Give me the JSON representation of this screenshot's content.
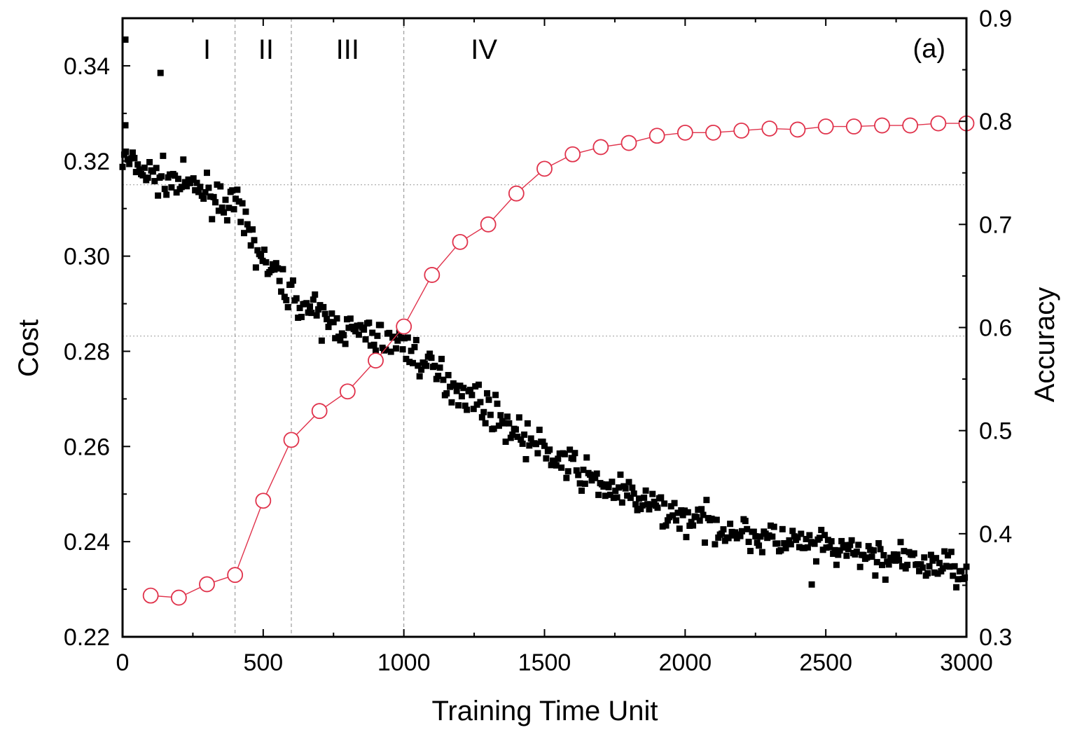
{
  "chart_data": {
    "type": "scatter",
    "panel_label": "(a)",
    "xlabel": "Training Time Unit",
    "ylabel_left": "Cost",
    "ylabel_right": "Accuracy",
    "xlim": [
      0,
      3000
    ],
    "ylim_left": [
      0.22,
      0.35
    ],
    "ylim_right": [
      0.3,
      0.9
    ],
    "x_ticks": [
      0,
      500,
      1000,
      1500,
      2000,
      2500,
      3000
    ],
    "x_tick_labels": [
      "0",
      "500",
      "1000",
      "1500",
      "2000",
      "2500",
      "3000"
    ],
    "y_left_ticks": [
      0.22,
      0.24,
      0.26,
      0.28,
      0.3,
      0.32,
      0.34
    ],
    "y_left_tick_labels": [
      "0.22",
      "0.24",
      "0.26",
      "0.28",
      "0.30",
      "0.32",
      "0.34"
    ],
    "y_right_ticks": [
      0.3,
      0.4,
      0.5,
      0.6,
      0.7,
      0.8,
      0.9
    ],
    "y_right_tick_labels": [
      "0.3",
      "0.4",
      "0.5",
      "0.6",
      "0.7",
      "0.8",
      "0.9"
    ],
    "phase_boundaries": [
      400,
      600,
      1000
    ],
    "phases": [
      {
        "label": "I",
        "x": 300
      },
      {
        "label": "II",
        "x": 510
      },
      {
        "label": "III",
        "x": 800
      },
      {
        "label": "IV",
        "x": 1285
      }
    ],
    "reference_lines_cost": [
      0.315,
      0.2832
    ],
    "accuracy_series": {
      "name": "Accuracy",
      "color": "#e0324b",
      "marker": "open-circle",
      "x": [
        100,
        200,
        300,
        400,
        500,
        600,
        700,
        800,
        900,
        1000,
        1100,
        1200,
        1300,
        1400,
        1500,
        1600,
        1700,
        1800,
        1900,
        2000,
        2100,
        2200,
        2300,
        2400,
        2500,
        2600,
        2700,
        2800,
        2900,
        3000
      ],
      "y": [
        0.34,
        0.338,
        0.351,
        0.36,
        0.432,
        0.491,
        0.519,
        0.538,
        0.568,
        0.601,
        0.651,
        0.683,
        0.7,
        0.73,
        0.754,
        0.768,
        0.775,
        0.779,
        0.786,
        0.789,
        0.789,
        0.791,
        0.793,
        0.792,
        0.795,
        0.795,
        0.796,
        0.796,
        0.798,
        0.798
      ]
    },
    "cost_series": {
      "name": "Cost",
      "color": "#000000",
      "marker": "filled-square",
      "trend": {
        "x": [
          0,
          100,
          200,
          300,
          400,
          500,
          600,
          700,
          800,
          900,
          1000,
          1100,
          1200,
          1300,
          1400,
          1500,
          1600,
          1700,
          1800,
          1900,
          2000,
          2100,
          2200,
          2300,
          2400,
          2500,
          2600,
          2700,
          2800,
          2900,
          3000
        ],
        "y": [
          0.3205,
          0.317,
          0.3155,
          0.3135,
          0.3105,
          0.299,
          0.292,
          0.287,
          0.2845,
          0.283,
          0.2815,
          0.276,
          0.272,
          0.268,
          0.263,
          0.259,
          0.2555,
          0.252,
          0.2495,
          0.247,
          0.245,
          0.2435,
          0.242,
          0.2405,
          0.2395,
          0.2385,
          0.2375,
          0.2365,
          0.2355,
          0.235,
          0.2345
        ]
      },
      "noise_amplitude": 0.0028,
      "outliers": [
        [
          10,
          0.3455
        ],
        [
          10,
          0.3275
        ],
        [
          135,
          0.3385
        ],
        [
          2450,
          0.231
        ]
      ]
    }
  }
}
